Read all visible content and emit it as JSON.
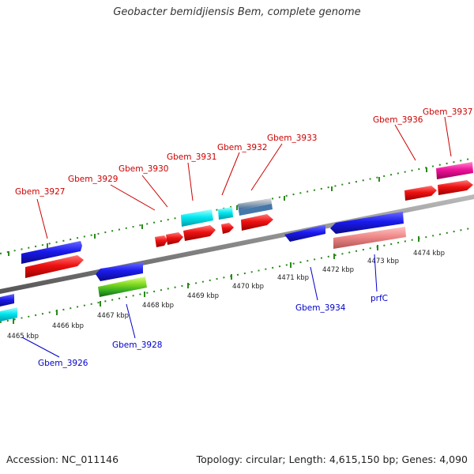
{
  "title": "Geobacter bemidjiensis Bem, complete genome",
  "footer": {
    "accession": "Accession: NC_011146",
    "stats": "Topology: circular; Length: 4,615,150 bp; Genes: 4,090"
  },
  "colors": {
    "backbone": "#8a8a8a",
    "dots": "#2a8a1a",
    "top_label": "#cc0000",
    "bottom_label": "#0000cc"
  },
  "ticks": [
    "4465 kbp",
    "4466 kbp",
    "4467 kbp",
    "4468 kbp",
    "4469 kbp",
    "4470 kbp",
    "4471 kbp",
    "4472 kbp",
    "4473 kbp",
    "4474 kbp"
  ],
  "top_labels": [
    "Gbem_3927",
    "Gbem_3929",
    "Gbem_3930",
    "Gbem_3931",
    "Gbem_3932",
    "Gbem_3933",
    "Gbem_3936",
    "Gbem_3937"
  ],
  "bottom_labels": [
    "Gbem_3926",
    "Gbem_3928",
    "Gbem_3934",
    "prfC"
  ]
}
